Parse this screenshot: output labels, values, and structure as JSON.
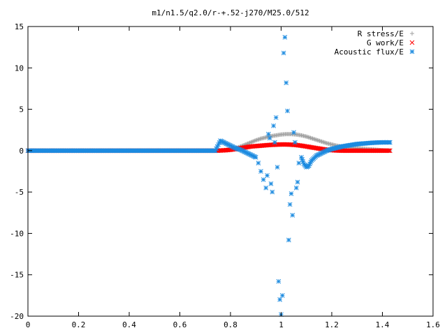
{
  "chart_data": {
    "type": "scatter",
    "title": "m1/n1.5/q2.0/r-+.52-j270/M25.0/512",
    "xlabel": "",
    "ylabel": "",
    "xlim": [
      0,
      1.6
    ],
    "ylim": [
      -20,
      15
    ],
    "x_ticks": [
      0,
      0.2,
      0.4,
      0.6,
      0.8,
      1,
      1.2,
      1.4,
      1.6
    ],
    "x_tick_labels": [
      "0",
      "0.2",
      "0.4",
      "0.6",
      "0.8",
      "1",
      "1.2",
      "1.4",
      "1.6"
    ],
    "y_ticks": [
      -20,
      -15,
      -10,
      -5,
      0,
      5,
      10,
      15
    ],
    "y_tick_labels": [
      "-20",
      "-15",
      "-10",
      "-5",
      "0",
      "5",
      "10",
      "15"
    ],
    "legend_position": "top-right",
    "grid": false,
    "series": [
      {
        "name": "R stress/E",
        "color": "#a0a0a0",
        "marker": "plus",
        "points": [
          [
            0.0,
            0.0
          ],
          [
            0.75,
            0.0
          ],
          [
            0.78,
            0.05
          ],
          [
            0.8,
            0.15
          ],
          [
            0.82,
            0.3
          ],
          [
            0.84,
            0.5
          ],
          [
            0.86,
            0.75
          ],
          [
            0.88,
            1.0
          ],
          [
            0.9,
            1.25
          ],
          [
            0.92,
            1.45
          ],
          [
            0.94,
            1.6
          ],
          [
            0.96,
            1.75
          ],
          [
            0.98,
            1.85
          ],
          [
            1.0,
            1.95
          ],
          [
            1.02,
            2.0
          ],
          [
            1.04,
            2.0
          ],
          [
            1.06,
            1.95
          ],
          [
            1.08,
            1.85
          ],
          [
            1.1,
            1.7
          ],
          [
            1.12,
            1.5
          ],
          [
            1.14,
            1.3
          ],
          [
            1.16,
            1.1
          ],
          [
            1.18,
            0.9
          ],
          [
            1.2,
            0.75
          ],
          [
            1.22,
            0.6
          ],
          [
            1.24,
            0.5
          ],
          [
            1.26,
            0.4
          ],
          [
            1.28,
            0.35
          ],
          [
            1.3,
            0.3
          ],
          [
            1.32,
            0.25
          ],
          [
            1.34,
            0.2
          ],
          [
            1.36,
            0.15
          ],
          [
            1.38,
            0.1
          ],
          [
            1.4,
            0.05
          ],
          [
            1.43,
            0.0
          ]
        ]
      },
      {
        "name": "G work/E",
        "color": "#ff0000",
        "marker": "cross",
        "points": [
          [
            0.0,
            0.0
          ],
          [
            0.75,
            0.0
          ],
          [
            0.78,
            0.05
          ],
          [
            0.8,
            0.1
          ],
          [
            0.82,
            0.2
          ],
          [
            0.84,
            0.3
          ],
          [
            0.86,
            0.4
          ],
          [
            0.88,
            0.5
          ],
          [
            0.9,
            0.55
          ],
          [
            0.92,
            0.6
          ],
          [
            0.94,
            0.65
          ],
          [
            0.96,
            0.7
          ],
          [
            0.98,
            0.72
          ],
          [
            1.0,
            0.75
          ],
          [
            1.02,
            0.75
          ],
          [
            1.04,
            0.72
          ],
          [
            1.06,
            0.68
          ],
          [
            1.08,
            0.6
          ],
          [
            1.1,
            0.5
          ],
          [
            1.12,
            0.4
          ],
          [
            1.14,
            0.3
          ],
          [
            1.16,
            0.2
          ],
          [
            1.18,
            0.12
          ],
          [
            1.2,
            0.06
          ],
          [
            1.22,
            0.02
          ],
          [
            1.24,
            0.0
          ],
          [
            1.3,
            0.0
          ],
          [
            1.36,
            0.0
          ],
          [
            1.43,
            0.0
          ]
        ]
      },
      {
        "name": "Acoustic flux/E",
        "color": "#1c8be0",
        "marker": "star",
        "points": [
          [
            0.0,
            0.0
          ],
          [
            0.74,
            0.0
          ],
          [
            0.76,
            1.2
          ],
          [
            0.78,
            0.9
          ],
          [
            0.8,
            0.6
          ],
          [
            0.82,
            0.3
          ],
          [
            0.84,
            0.1
          ],
          [
            0.86,
            -0.2
          ],
          [
            0.88,
            -0.5
          ],
          [
            0.9,
            -0.8
          ],
          [
            0.91,
            -1.5
          ],
          [
            0.92,
            -2.5
          ],
          [
            0.93,
            -3.5
          ],
          [
            0.94,
            -4.5
          ],
          [
            0.945,
            -3.0
          ],
          [
            0.95,
            2.0
          ],
          [
            0.955,
            1.5
          ],
          [
            0.96,
            -4.0
          ],
          [
            0.965,
            -5.0
          ],
          [
            0.97,
            3.0
          ],
          [
            0.975,
            1.0
          ],
          [
            0.98,
            4.0
          ],
          [
            0.985,
            -2.0
          ],
          [
            0.99,
            -15.8
          ],
          [
            0.995,
            -18.0
          ],
          [
            1.0,
            -19.8
          ],
          [
            1.005,
            -17.5
          ],
          [
            1.01,
            11.8
          ],
          [
            1.015,
            13.7
          ],
          [
            1.02,
            8.2
          ],
          [
            1.025,
            4.8
          ],
          [
            1.03,
            -10.8
          ],
          [
            1.035,
            -6.5
          ],
          [
            1.04,
            -5.2
          ],
          [
            1.045,
            -7.8
          ],
          [
            1.05,
            2.2
          ],
          [
            1.055,
            1.0
          ],
          [
            1.06,
            -4.5
          ],
          [
            1.065,
            -3.8
          ],
          [
            1.07,
            -1.5
          ],
          [
            1.08,
            -0.8
          ],
          [
            1.09,
            -1.6
          ],
          [
            1.1,
            -2.0
          ],
          [
            1.11,
            -1.8
          ],
          [
            1.12,
            -1.2
          ],
          [
            1.14,
            -0.6
          ],
          [
            1.16,
            -0.3
          ],
          [
            1.18,
            0.0
          ],
          [
            1.2,
            0.2
          ],
          [
            1.22,
            0.35
          ],
          [
            1.24,
            0.5
          ],
          [
            1.26,
            0.6
          ],
          [
            1.28,
            0.7
          ],
          [
            1.3,
            0.8
          ],
          [
            1.32,
            0.85
          ],
          [
            1.34,
            0.9
          ],
          [
            1.36,
            0.95
          ],
          [
            1.38,
            0.98
          ],
          [
            1.4,
            1.0
          ],
          [
            1.43,
            1.0
          ]
        ]
      }
    ]
  }
}
